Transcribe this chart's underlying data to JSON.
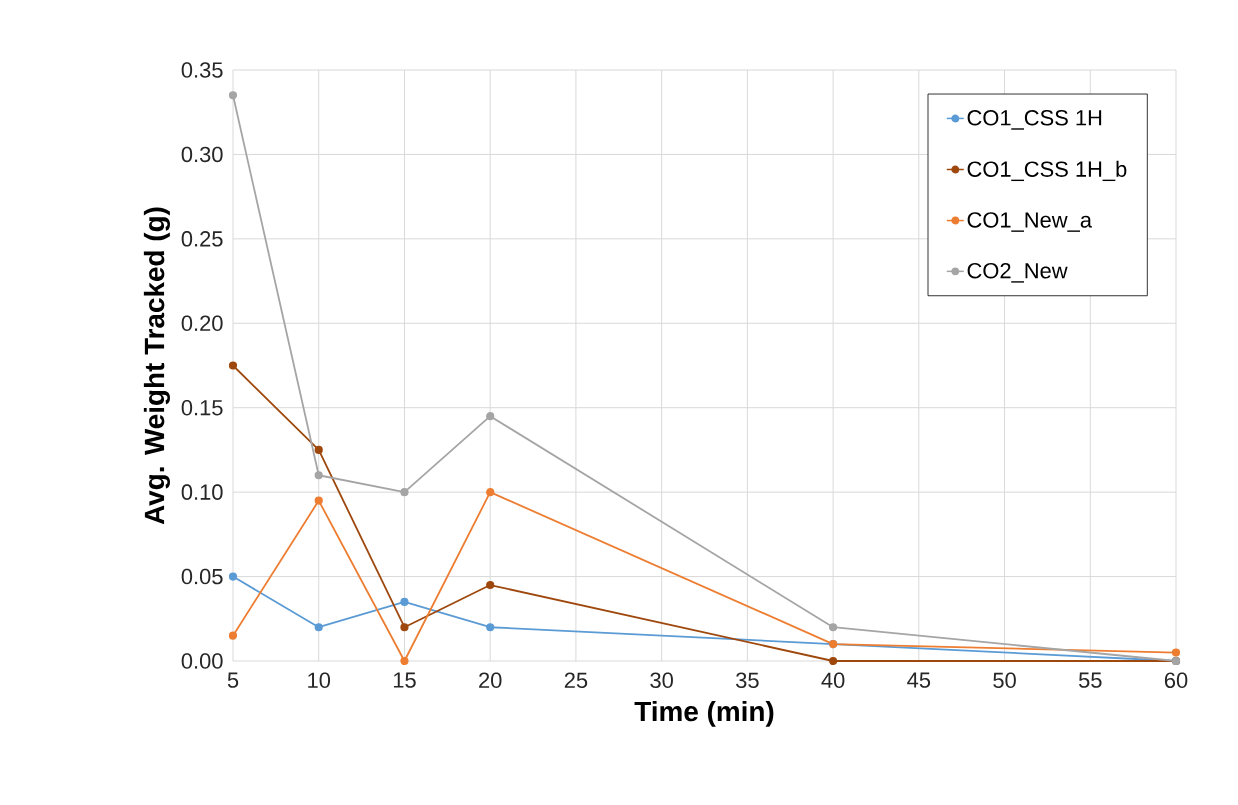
{
  "chart_data": {
    "type": "line",
    "xlabel": "Time (min)",
    "ylabel": "Avg. Weight Tracked (g)",
    "x": [
      5,
      10,
      15,
      20,
      40,
      60
    ],
    "series": [
      {
        "name": "CO1_CSS 1H",
        "color": "#5b9bd5",
        "values": [
          0.05,
          0.02,
          0.035,
          0.02,
          0.01,
          0.0
        ]
      },
      {
        "name": "CO1_CSS 1H_b",
        "color": "#9e480e",
        "values": [
          0.175,
          0.125,
          0.02,
          0.045,
          0.0,
          0.0
        ]
      },
      {
        "name": "CO1_New_a",
        "color": "#ed7d31",
        "values": [
          0.015,
          0.095,
          0.0,
          0.1,
          0.01,
          0.005
        ]
      },
      {
        "name": "CO2_New",
        "color": "#a5a5a5",
        "values": [
          0.335,
          0.11,
          0.1,
          0.145,
          0.02,
          0.0
        ]
      }
    ],
    "xlim": [
      5,
      60
    ],
    "xticks": [
      5,
      10,
      15,
      20,
      25,
      30,
      35,
      40,
      45,
      50,
      55,
      60
    ],
    "ylim": [
      0,
      0.35
    ],
    "yticks": [
      {
        "value": 0,
        "label": "0.00"
      },
      {
        "value": 0.05,
        "label": "0.05"
      },
      {
        "value": 0.1,
        "label": "0.10"
      },
      {
        "value": 0.15,
        "label": "0.15"
      },
      {
        "value": 0.2,
        "label": "0.20"
      },
      {
        "value": 0.25,
        "label": "0.25"
      },
      {
        "value": 0.3,
        "label": "0.30"
      },
      {
        "value": 0.35,
        "label": "0.35"
      }
    ],
    "grid": true,
    "legend": "top right",
    "marker": "circle",
    "line_style": "solid"
  }
}
